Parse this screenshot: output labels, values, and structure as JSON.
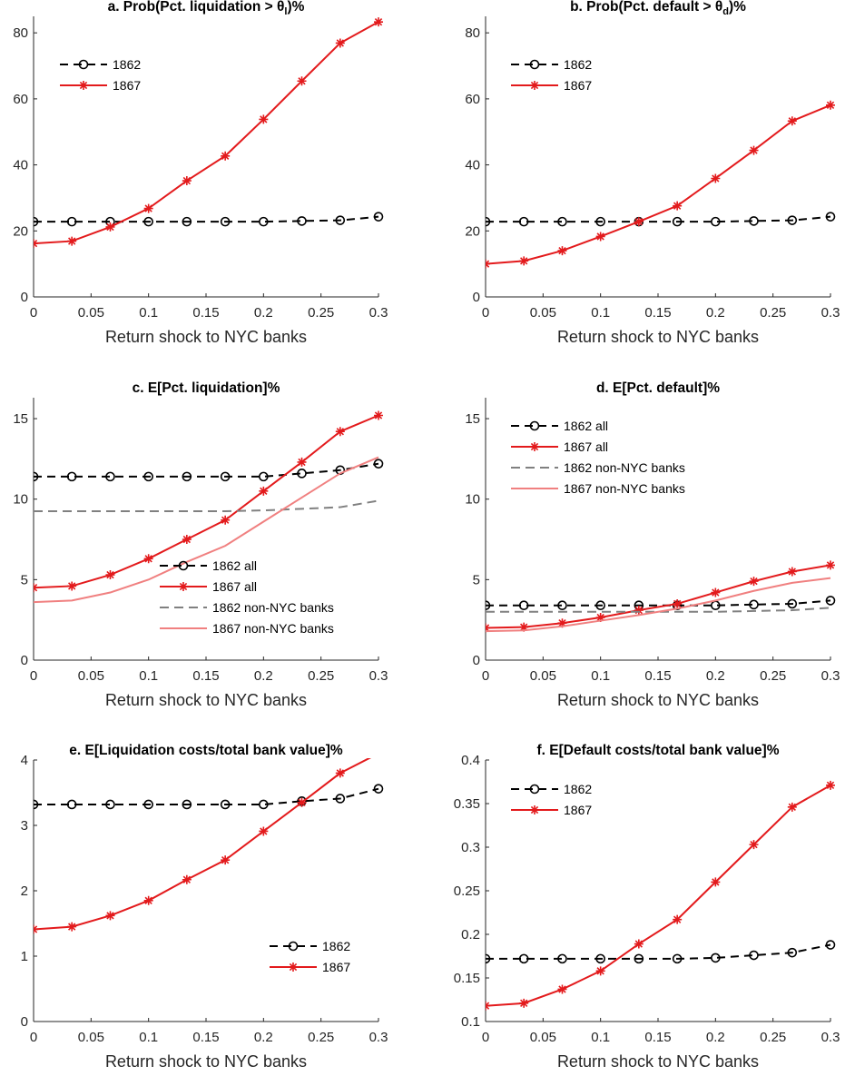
{
  "chart_data": [
    {
      "id": "a",
      "type": "line",
      "title": "a. Prob(Pct. liquidation > θ",
      "title_sub": "l",
      "title_end": ")%",
      "xlabel": "Return shock to NYC banks",
      "ylabel": "",
      "xlim": [
        0,
        0.3
      ],
      "ylim": [
        0,
        85
      ],
      "xticks": [
        0,
        0.05,
        0.1,
        0.15,
        0.2,
        0.25,
        0.3
      ],
      "xtick_labels": [
        "0",
        "0.05",
        "0.1",
        "0.15",
        "0.2",
        "0.25",
        "0.3"
      ],
      "yticks": [
        0,
        20,
        40,
        60,
        80
      ],
      "ytick_labels": [
        "0",
        "20",
        "40",
        "60",
        "80"
      ],
      "legend_position": "top-left",
      "x": [
        0,
        0.0333,
        0.0667,
        0.1,
        0.1333,
        0.1667,
        0.2,
        0.2333,
        0.2667,
        0.3
      ],
      "series": [
        {
          "name": "1862",
          "style": "black-dashed-circle",
          "values": [
            22.8,
            22.8,
            22.8,
            22.8,
            22.8,
            22.8,
            22.8,
            23.0,
            23.2,
            24.3
          ]
        },
        {
          "name": "1867",
          "style": "red-solid-star",
          "values": [
            16.2,
            16.9,
            21.2,
            26.8,
            35.2,
            42.7,
            53.8,
            65.4,
            76.9,
            83.3
          ]
        }
      ]
    },
    {
      "id": "b",
      "type": "line",
      "title": "b. Prob(Pct. default > θ",
      "title_sub": "d",
      "title_end": ")%",
      "xlabel": "Return shock to NYC banks",
      "ylabel": "",
      "xlim": [
        0,
        0.3
      ],
      "ylim": [
        0,
        85
      ],
      "xticks": [
        0,
        0.05,
        0.1,
        0.15,
        0.2,
        0.25,
        0.3
      ],
      "xtick_labels": [
        "0",
        "0.05",
        "0.1",
        "0.15",
        "0.2",
        "0.25",
        "0.3"
      ],
      "yticks": [
        0,
        20,
        40,
        60,
        80
      ],
      "ytick_labels": [
        "0",
        "20",
        "40",
        "60",
        "80"
      ],
      "legend_position": "top-left",
      "x": [
        0,
        0.0333,
        0.0667,
        0.1,
        0.1333,
        0.1667,
        0.2,
        0.2333,
        0.2667,
        0.3
      ],
      "series": [
        {
          "name": "1862",
          "style": "black-dashed-circle",
          "values": [
            22.8,
            22.8,
            22.8,
            22.8,
            22.8,
            22.8,
            22.8,
            23.0,
            23.2,
            24.3
          ]
        },
        {
          "name": "1867",
          "style": "red-solid-star",
          "values": [
            10.0,
            10.9,
            14.0,
            18.3,
            22.8,
            27.6,
            35.9,
            44.4,
            53.3,
            58.1
          ]
        }
      ]
    },
    {
      "id": "c",
      "type": "line",
      "title": "c. E[Pct. liquidation]%",
      "xlabel": "Return shock to NYC banks",
      "ylabel": "",
      "xlim": [
        0,
        0.3
      ],
      "ylim": [
        0,
        16.3
      ],
      "xticks": [
        0,
        0.05,
        0.1,
        0.15,
        0.2,
        0.25,
        0.3
      ],
      "xtick_labels": [
        "0",
        "0.05",
        "0.1",
        "0.15",
        "0.2",
        "0.25",
        "0.3"
      ],
      "yticks": [
        0,
        5,
        10,
        15
      ],
      "ytick_labels": [
        "0",
        "5",
        "10",
        "15"
      ],
      "legend_position": "bottom-right",
      "x": [
        0,
        0.0333,
        0.0667,
        0.1,
        0.1333,
        0.1667,
        0.2,
        0.2333,
        0.2667,
        0.3
      ],
      "series": [
        {
          "name": "1862 all",
          "style": "black-dashed-circle",
          "values": [
            11.4,
            11.4,
            11.4,
            11.4,
            11.4,
            11.4,
            11.4,
            11.6,
            11.8,
            12.2
          ]
        },
        {
          "name": "1867 all",
          "style": "red-solid-star",
          "values": [
            4.5,
            4.6,
            5.3,
            6.3,
            7.5,
            8.7,
            10.5,
            12.3,
            14.2,
            15.2
          ]
        },
        {
          "name": "1862 non-NYC banks",
          "style": "gray-dashed",
          "values": [
            9.25,
            9.25,
            9.25,
            9.25,
            9.25,
            9.25,
            9.3,
            9.4,
            9.5,
            9.9
          ]
        },
        {
          "name": "1867 non-NYC banks",
          "style": "pink-solid",
          "values": [
            3.6,
            3.7,
            4.2,
            5.0,
            6.1,
            7.1,
            8.6,
            10.1,
            11.6,
            12.6
          ]
        }
      ]
    },
    {
      "id": "d",
      "type": "line",
      "title": "d. E[Pct. default]%",
      "xlabel": "Return shock to NYC banks",
      "ylabel": "",
      "xlim": [
        0,
        0.3
      ],
      "ylim": [
        0,
        16.3
      ],
      "xticks": [
        0,
        0.05,
        0.1,
        0.15,
        0.2,
        0.25,
        0.3
      ],
      "xtick_labels": [
        "0",
        "0.05",
        "0.1",
        "0.15",
        "0.2",
        "0.25",
        "0.3"
      ],
      "yticks": [
        0,
        5,
        10,
        15
      ],
      "ytick_labels": [
        "0",
        "5",
        "10",
        "15"
      ],
      "legend_position": "top-left",
      "x": [
        0,
        0.0333,
        0.0667,
        0.1,
        0.1333,
        0.1667,
        0.2,
        0.2333,
        0.2667,
        0.3
      ],
      "series": [
        {
          "name": "1862 all",
          "style": "black-dashed-circle",
          "values": [
            3.4,
            3.4,
            3.4,
            3.4,
            3.4,
            3.4,
            3.4,
            3.45,
            3.5,
            3.7
          ]
        },
        {
          "name": "1867 all",
          "style": "red-solid-star",
          "values": [
            2.0,
            2.05,
            2.3,
            2.65,
            3.1,
            3.5,
            4.2,
            4.9,
            5.5,
            5.9
          ]
        },
        {
          "name": "1862 non-NYC banks",
          "style": "gray-dashed",
          "values": [
            3.0,
            3.0,
            3.0,
            3.0,
            3.0,
            3.0,
            3.0,
            3.05,
            3.1,
            3.25
          ]
        },
        {
          "name": "1867 non-NYC banks",
          "style": "pink-solid",
          "values": [
            1.8,
            1.85,
            2.1,
            2.45,
            2.8,
            3.2,
            3.7,
            4.3,
            4.8,
            5.1
          ]
        }
      ]
    },
    {
      "id": "e",
      "type": "line",
      "title": "e. E[Liquidation costs/total bank value]%",
      "xlabel": "Return shock to NYC banks",
      "ylabel": "",
      "xlim": [
        0,
        0.3
      ],
      "ylim": [
        0,
        4
      ],
      "xticks": [
        0,
        0.05,
        0.1,
        0.15,
        0.2,
        0.25,
        0.3
      ],
      "xtick_labels": [
        "0",
        "0.05",
        "0.1",
        "0.15",
        "0.2",
        "0.25",
        "0.3"
      ],
      "yticks": [
        0,
        1,
        2,
        3,
        4
      ],
      "ytick_labels": [
        "0",
        "1",
        "2",
        "3",
        "4"
      ],
      "legend_position": "bottom-right",
      "x": [
        0,
        0.0333,
        0.0667,
        0.1,
        0.1333,
        0.1667,
        0.2,
        0.2333,
        0.2667,
        0.3
      ],
      "series": [
        {
          "name": "1862",
          "style": "black-dashed-circle",
          "values": [
            3.32,
            3.32,
            3.32,
            3.32,
            3.32,
            3.32,
            3.32,
            3.37,
            3.41,
            3.56
          ]
        },
        {
          "name": "1867",
          "style": "red-solid-star",
          "values": [
            1.41,
            1.45,
            1.62,
            1.85,
            2.17,
            2.47,
            2.91,
            3.35,
            3.8,
            4.1
          ]
        }
      ]
    },
    {
      "id": "f",
      "type": "line",
      "title": "f. E[Default costs/total bank value]%",
      "xlabel": "Return shock to NYC banks",
      "ylabel": "",
      "xlim": [
        0,
        0.3
      ],
      "ylim": [
        0.1,
        0.4
      ],
      "xticks": [
        0,
        0.05,
        0.1,
        0.15,
        0.2,
        0.25,
        0.3
      ],
      "xtick_labels": [
        "0",
        "0.05",
        "0.1",
        "0.15",
        "0.2",
        "0.25",
        "0.3"
      ],
      "yticks": [
        0.1,
        0.15,
        0.2,
        0.25,
        0.3,
        0.35,
        0.4
      ],
      "ytick_labels": [
        "0.1",
        "0.15",
        "0.2",
        "0.25",
        "0.3",
        "0.35",
        "0.4"
      ],
      "legend_position": "top-left",
      "x": [
        0,
        0.0333,
        0.0667,
        0.1,
        0.1333,
        0.1667,
        0.2,
        0.2333,
        0.2667,
        0.3
      ],
      "series": [
        {
          "name": "1862",
          "style": "black-dashed-circle",
          "values": [
            0.172,
            0.172,
            0.172,
            0.172,
            0.172,
            0.172,
            0.173,
            0.176,
            0.179,
            0.188
          ]
        },
        {
          "name": "1867",
          "style": "red-solid-star",
          "values": [
            0.118,
            0.121,
            0.137,
            0.158,
            0.189,
            0.217,
            0.26,
            0.303,
            0.346,
            0.371
          ]
        }
      ]
    }
  ],
  "colors": {
    "black_series": "#000000",
    "red_series": "#e31a1c",
    "gray_series": "#808080",
    "pink_series": "#f08080",
    "axis": "#262626"
  }
}
